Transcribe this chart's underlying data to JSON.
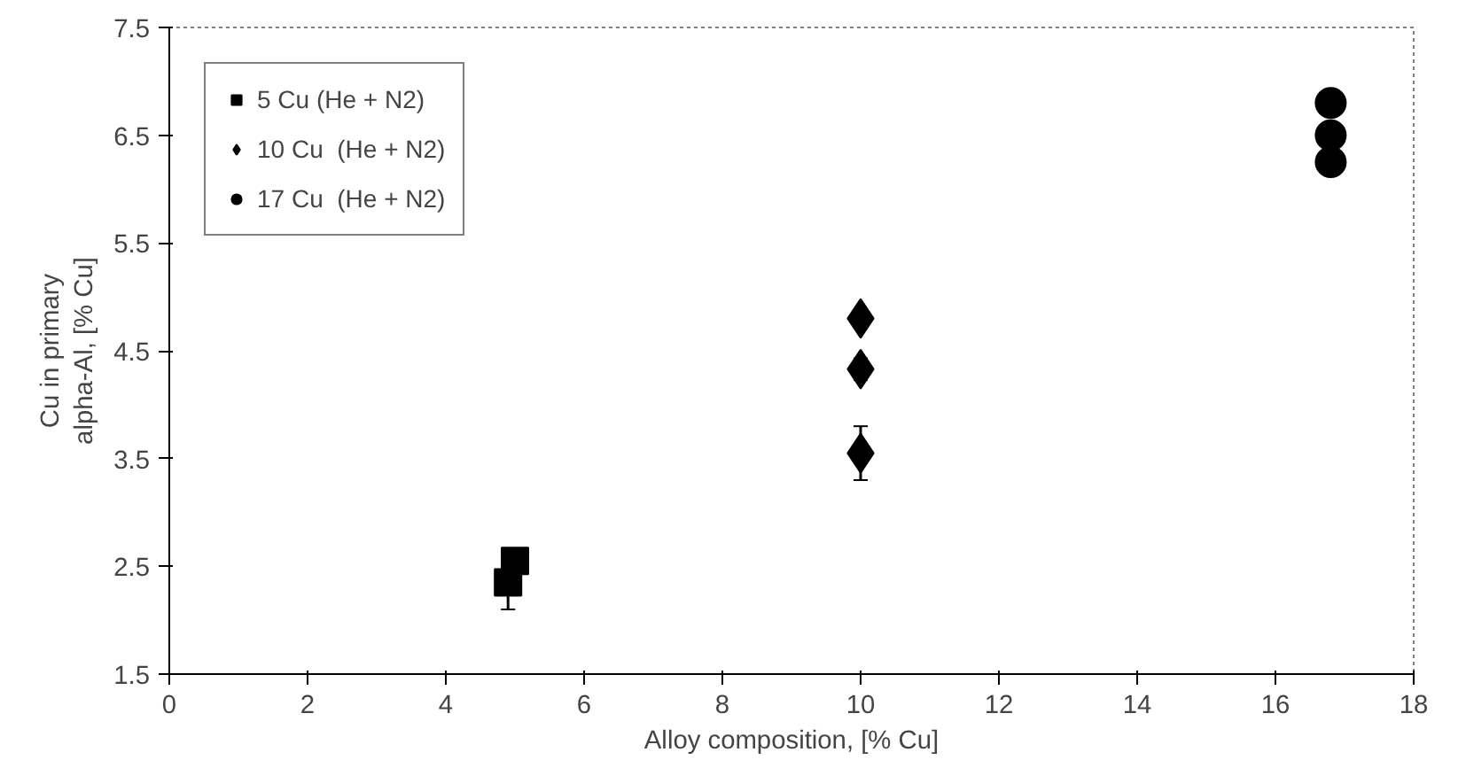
{
  "chart_data": {
    "type": "scatter",
    "xlabel": "Alloy composition, [% Cu]",
    "ylabel": "Cu in primary\nalpha-Al, [% Cu]",
    "xlim": [
      0,
      18
    ],
    "xticks": [
      0,
      2,
      4,
      6,
      8,
      10,
      12,
      14,
      16,
      18
    ],
    "ylim": [
      1.5,
      7.5
    ],
    "yticks": [
      1.5,
      2.5,
      3.5,
      4.5,
      5.5,
      6.5,
      7.5
    ],
    "grid": false,
    "legend": "top left",
    "series": [
      {
        "name": "5 Cu (He + N2)",
        "color": "#000000",
        "marker": "square",
        "x": [
          4.9,
          5.0
        ],
        "values": [
          2.35,
          2.55
        ],
        "errors": [
          0.25,
          null
        ]
      },
      {
        "name": "10 Cu  (He + N2)",
        "color": "#000000",
        "marker": "diamond",
        "x": [
          10,
          10,
          10
        ],
        "values": [
          4.8,
          4.33,
          3.55
        ],
        "errors": [
          null,
          0.1,
          0.25
        ]
      },
      {
        "name": "17 Cu  (He + N2)",
        "color": "#000000",
        "marker": "circle",
        "x": [
          16.8,
          16.8,
          16.8
        ],
        "values": [
          6.8,
          6.5,
          6.25
        ],
        "errors": [
          null,
          null,
          null
        ]
      }
    ]
  }
}
